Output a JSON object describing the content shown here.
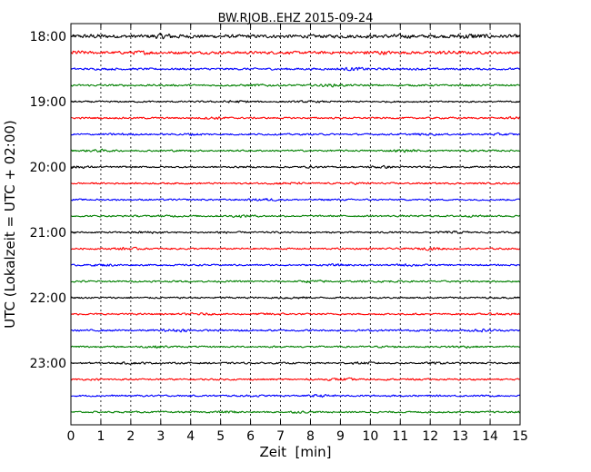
{
  "chart_data": {
    "type": "line",
    "title": "BW.RJOB..EHZ 2015-09-24",
    "xlabel": "Zeit  [min]",
    "ylabel": "UTC (Lokalzeit = UTC + 02:00)",
    "xlim": [
      0,
      15
    ],
    "x_ticks": [
      "0",
      "1",
      "2",
      "3",
      "4",
      "5",
      "6",
      "7",
      "8",
      "9",
      "10",
      "11",
      "12",
      "13",
      "14",
      "15"
    ],
    "y_tick_labels": [
      "18:00",
      "19:00",
      "20:00",
      "21:00",
      "22:00",
      "23:00"
    ],
    "grid": "vertical dotted",
    "trace_colors": [
      "#000000",
      "#ff0000",
      "#0000ff",
      "#008000"
    ],
    "traces": [
      {
        "start": "18:00",
        "amplitude": 0.9
      },
      {
        "start": "18:15",
        "amplitude": 0.75
      },
      {
        "start": "18:30",
        "amplitude": 0.55
      },
      {
        "start": "18:45",
        "amplitude": 0.5
      },
      {
        "start": "19:00",
        "amplitude": 0.45
      },
      {
        "start": "19:15",
        "amplitude": 0.45
      },
      {
        "start": "19:30",
        "amplitude": 0.45
      },
      {
        "start": "19:45",
        "amplitude": 0.45
      },
      {
        "start": "20:00",
        "amplitude": 0.45
      },
      {
        "start": "20:15",
        "amplitude": 0.45
      },
      {
        "start": "20:30",
        "amplitude": 0.45
      },
      {
        "start": "20:45",
        "amplitude": 0.45
      },
      {
        "start": "21:00",
        "amplitude": 0.45
      },
      {
        "start": "21:15",
        "amplitude": 0.45
      },
      {
        "start": "21:30",
        "amplitude": 0.45
      },
      {
        "start": "21:45",
        "amplitude": 0.45
      },
      {
        "start": "22:00",
        "amplitude": 0.45
      },
      {
        "start": "22:15",
        "amplitude": 0.45
      },
      {
        "start": "22:30",
        "amplitude": 0.5
      },
      {
        "start": "22:45",
        "amplitude": 0.45
      },
      {
        "start": "23:00",
        "amplitude": 0.45
      },
      {
        "start": "23:15",
        "amplitude": 0.45
      },
      {
        "start": "23:30",
        "amplitude": 0.45
      },
      {
        "start": "23:45",
        "amplitude": 0.45
      }
    ]
  }
}
